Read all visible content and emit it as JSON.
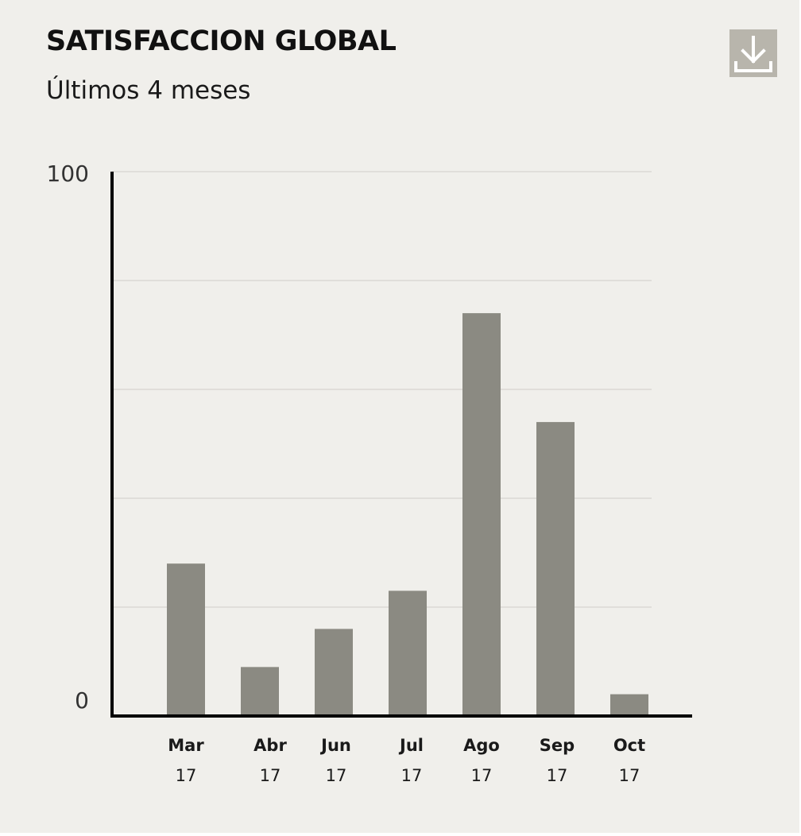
{
  "header": {
    "title": "SATISFACCION GLOBAL",
    "subtitle": "Últimos 4 meses"
  },
  "toolbar": {
    "download_icon": "download-icon"
  },
  "colors": {
    "background": "#f0efeb",
    "bar": "#8b8a82",
    "gridline": "#d6d4cf",
    "axis": "#000000",
    "button": "#b8b5ac"
  },
  "chart_data": {
    "type": "bar",
    "title": "SATISFACCION GLOBAL",
    "subtitle": "Últimos 4 meses",
    "categories": [
      "Mar",
      "Abr",
      "Jun",
      "Jul",
      "Ago",
      "Sep",
      "Oct"
    ],
    "category_years": [
      "17",
      "17",
      "17",
      "17",
      "17",
      "17",
      "17"
    ],
    "values": [
      28,
      9,
      16,
      23,
      74,
      54,
      4
    ],
    "ylim": [
      0,
      100
    ],
    "yticks_labeled": [
      "0",
      "100"
    ],
    "grid": true,
    "xlabel": "",
    "ylabel": ""
  }
}
